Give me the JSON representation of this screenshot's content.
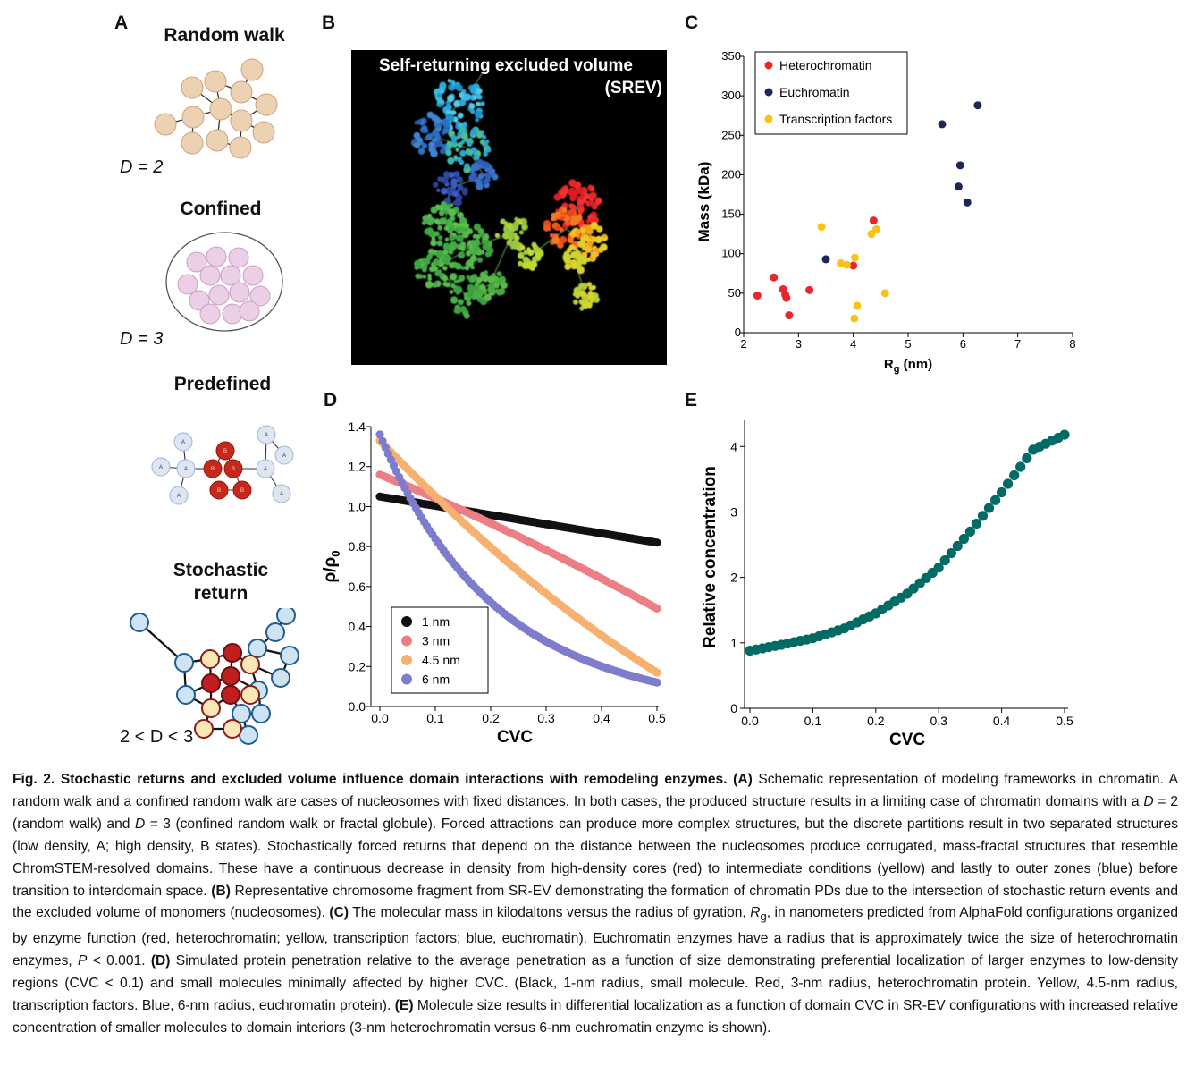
{
  "panels": {
    "a": {
      "letter": "A",
      "items": [
        {
          "title": "Random walk",
          "dlabel": "D = 2"
        },
        {
          "title": "Confined",
          "dlabel": "D = 3"
        },
        {
          "title": "Predefined",
          "dlabel": ""
        },
        {
          "title": "Stochastic\nreturn",
          "dlabel": "2 < D < 3"
        }
      ],
      "predefined_labels": {
        "a": "A",
        "b": "B"
      }
    },
    "b": {
      "letter": "B",
      "title_line1": "Self-returning excluded volume",
      "title_line2": "(SREV)"
    },
    "c": {
      "letter": "C"
    },
    "d": {
      "letter": "D"
    },
    "e": {
      "letter": "E"
    }
  },
  "chart_data": [
    {
      "id": "C",
      "type": "scatter",
      "xlabel": "Rg (nm)",
      "ylabel": "Mass (kDa)",
      "xlim": [
        2,
        8
      ],
      "ylim": [
        0,
        350
      ],
      "xticks": [
        2,
        3,
        4,
        5,
        6,
        7,
        8
      ],
      "yticks": [
        0,
        50,
        100,
        150,
        200,
        250,
        300,
        350
      ],
      "legend_position": "top-left",
      "series": [
        {
          "name": "Heterochromatin",
          "color": "#e8262b",
          "points": [
            [
              2.25,
              47
            ],
            [
              2.55,
              70
            ],
            [
              2.72,
              55
            ],
            [
              2.76,
              48
            ],
            [
              2.78,
              44
            ],
            [
              2.83,
              22
            ],
            [
              3.2,
              54
            ],
            [
              4.0,
              85
            ],
            [
              4.37,
              142
            ]
          ]
        },
        {
          "name": "Euchromatin",
          "color": "#1c2757",
          "points": [
            [
              3.5,
              93
            ],
            [
              5.62,
              264
            ],
            [
              5.92,
              185
            ],
            [
              5.95,
              212
            ],
            [
              6.08,
              165
            ],
            [
              6.27,
              288
            ]
          ]
        },
        {
          "name": "Transcription factors",
          "color": "#f7c318",
          "points": [
            [
              3.42,
              134
            ],
            [
              3.77,
              88
            ],
            [
              3.88,
              86
            ],
            [
              4.03,
              95
            ],
            [
              4.02,
              18
            ],
            [
              4.07,
              34
            ],
            [
              4.33,
              125
            ],
            [
              4.42,
              131
            ],
            [
              4.58,
              50
            ]
          ]
        }
      ]
    },
    {
      "id": "D",
      "type": "scatter",
      "xlabel": "CVC",
      "ylabel": "ρ/ρ0",
      "xlim": [
        0,
        0.5
      ],
      "ylim": [
        0,
        1.4
      ],
      "xticks": [
        "0.0",
        "0.1",
        "0.2",
        "0.3",
        "0.4",
        "0.5"
      ],
      "yticks": [
        "0.0",
        "0.2",
        "0.4",
        "0.6",
        "0.8",
        "1.0",
        "1.2",
        "1.4"
      ],
      "legend_position": "bottom-left",
      "series": [
        {
          "name": "1 nm",
          "color": "#111111",
          "x": [
            0,
            0.5
          ],
          "y": [
            1.05,
            0.82
          ],
          "shape": "linear"
        },
        {
          "name": "3 nm",
          "color": "#ec7f85",
          "x": [
            0,
            0.5
          ],
          "y": [
            1.16,
            0.49
          ],
          "shape": "slight-curve"
        },
        {
          "name": "4.5 nm",
          "color": "#f6b070",
          "x": [
            0,
            0.5
          ],
          "y": [
            1.33,
            0.17
          ],
          "shape": "curve"
        },
        {
          "name": "6 nm",
          "color": "#7e7ccd",
          "x": [
            0,
            0.5
          ],
          "y": [
            1.36,
            0.12
          ],
          "shape": "decay"
        }
      ]
    },
    {
      "id": "E",
      "type": "scatter",
      "xlabel": "CVC",
      "ylabel": "Relative concentration",
      "xlim": [
        0,
        0.5
      ],
      "ylim": [
        0,
        4.4
      ],
      "xticks": [
        "0.0",
        "0.1",
        "0.2",
        "0.3",
        "0.4",
        "0.5"
      ],
      "yticks": [
        "0",
        "1",
        "2",
        "3",
        "4"
      ],
      "series": [
        {
          "name": "",
          "color": "#006b64",
          "x": [
            0,
            0.05,
            0.1,
            0.15,
            0.2,
            0.25,
            0.3,
            0.35,
            0.4,
            0.45,
            0.5
          ],
          "y": [
            0.88,
            0.97,
            1.07,
            1.22,
            1.45,
            1.75,
            2.15,
            2.7,
            3.3,
            3.95,
            4.18
          ]
        }
      ]
    }
  ],
  "caption": {
    "fig_label": "Fig. 2.",
    "title": "Stochastic returns and excluded volume influence domain interactions with remodeling enzymes.",
    "body_html": "<b>(A)</b> Schematic representation of modeling frameworks in chromatin. A random walk and a confined random walk are cases of nucleosomes with fixed distances. In both cases, the produced structure results in a limiting case of chromatin domains with a <i>D</i> = 2 (random walk) and <i>D</i> = 3 (confined random walk or fractal globule). Forced attractions can produce more complex structures, but the discrete partitions result in two separated structures (low density, A; high density, B states). Stochastically forced returns that depend on the distance between the nucleosomes produce corrugated, mass-fractal structures that resemble ChromSTEM-resolved domains. These have a continuous decrease in density from high-density cores (red) to intermediate conditions (yellow) and lastly to outer zones (blue) before transition to interdomain space. <b>(B)</b> Representative chromosome fragment from SR-EV demonstrating the formation of chromatin PDs due to the intersection of stochastic return events and the excluded volume of monomers (nucleosomes). <b>(C)</b> The molecular mass in kilodaltons versus the radius of gyration, <i>R</i><sub>g</sub>, in nanometers predicted from AlphaFold configurations organized by enzyme function (red, heterochromatin; yellow, transcription factors; blue, euchromatin). Euchromatin enzymes have a radius that is approximately twice the size of heterochromatin enzymes, <i>P</i> &lt; 0.001. <b>(D)</b> Simulated protein penetration relative to the average penetration as a function of size demonstrating preferential localization of larger enzymes to low-density regions (CVC &lt; 0.1) and small molecules minimally affected by higher CVC. (Black, 1-nm radius, small molecule. Red, 3-nm radius, heterochromatin protein. Yellow, 4.5-nm radius, transcription factors. Blue, 6-nm radius, euchromatin protein). <b>(E)</b> Molecule size results in differential localization as a function of domain CVC in SR-EV configurations with increased relative concentration of smaller molecules to domain interiors (3-nm heterochromatin versus 6-nm euchromatin enzyme is shown)."
  }
}
